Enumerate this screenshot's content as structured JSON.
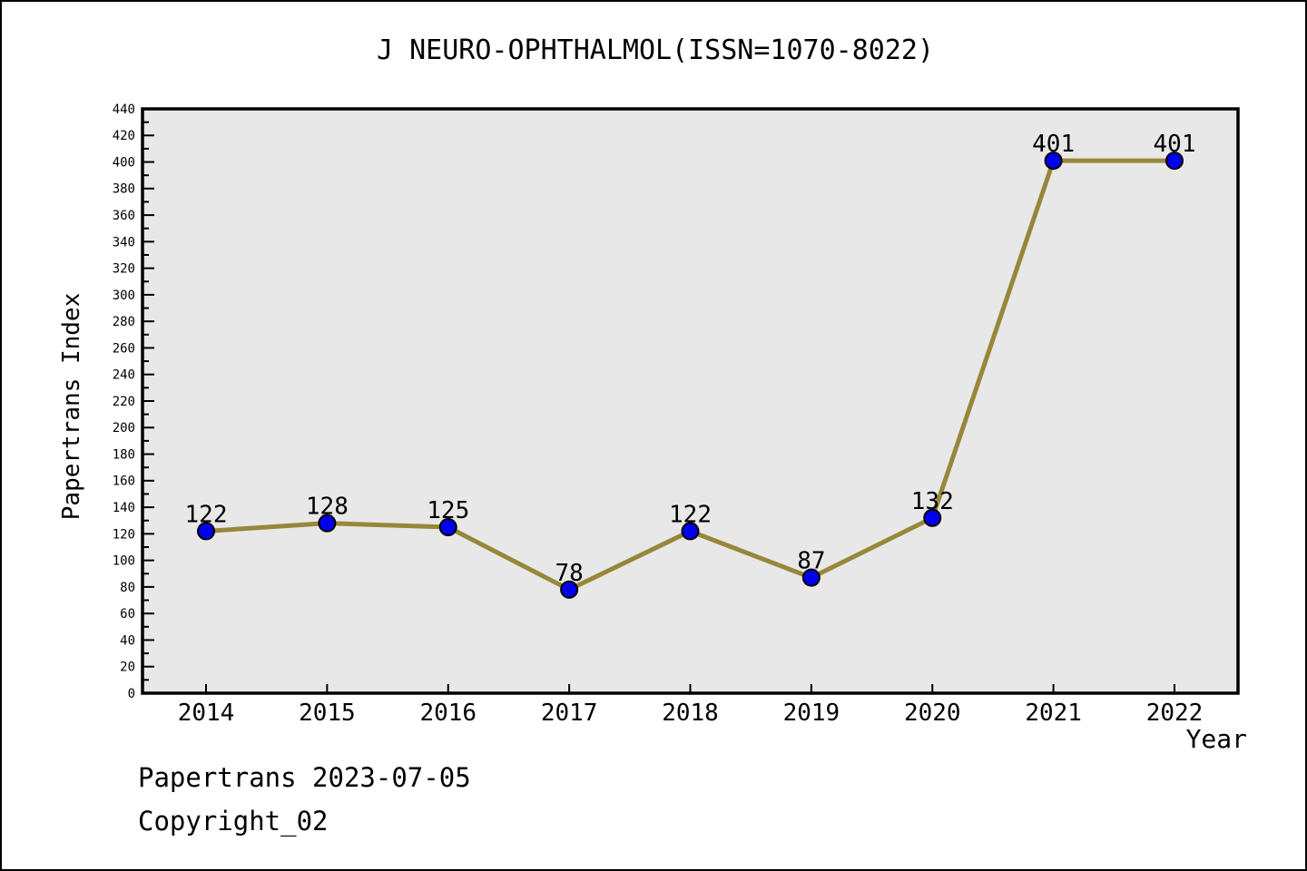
{
  "page": {
    "title": "J NEURO-OPHTHALMOL(ISSN=1070-8022)",
    "footer_line1": "Papertrans 2023-07-05",
    "footer_line2": "Copyright_02"
  },
  "chart_data": {
    "type": "line",
    "title": "J NEURO-OPHTHALMOL(ISSN=1070-8022)",
    "categories": [
      "2014",
      "2015",
      "2016",
      "2017",
      "2018",
      "2019",
      "2020",
      "2021",
      "2022"
    ],
    "values": [
      122,
      128,
      125,
      78,
      122,
      87,
      132,
      401,
      401
    ],
    "point_labels": [
      "122",
      "128",
      "125",
      "78",
      "122",
      "87",
      "132",
      "401",
      "401"
    ],
    "xlabel": "Year",
    "ylabel": "Papertrans Index",
    "ylim": [
      0,
      440
    ],
    "ytick_major_step": 20,
    "ytick_minor_step": 10,
    "grid": false,
    "legend": "none",
    "colors": {
      "line": "#97873a",
      "marker_fill": "#0000ee",
      "marker_edge": "#000000",
      "plot_bg": "#e8e8e8",
      "axis": "#000000",
      "text": "#000000"
    }
  }
}
